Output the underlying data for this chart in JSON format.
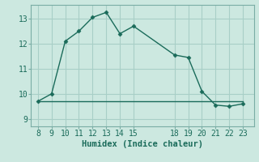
{
  "x_main": [
    8,
    9,
    10,
    11,
    12,
    13,
    14,
    15,
    18,
    19,
    20,
    21,
    22,
    23
  ],
  "y_main": [
    9.7,
    10.0,
    12.1,
    12.5,
    13.05,
    13.25,
    12.4,
    12.7,
    11.55,
    11.45,
    10.1,
    9.55,
    9.5,
    9.6
  ],
  "x_flat": [
    8,
    9,
    10,
    11,
    12,
    13,
    14,
    15,
    18,
    19,
    20,
    21,
    22,
    23
  ],
  "y_flat": [
    9.7,
    9.7,
    9.7,
    9.7,
    9.7,
    9.7,
    9.7,
    9.7,
    9.7,
    9.7,
    9.7,
    9.7,
    9.7,
    9.7
  ],
  "line_color": "#1a6b5a",
  "bg_color": "#cce8e0",
  "grid_color": "#a8cfc7",
  "xlabel": "Humidex (Indice chaleur)",
  "xticks": [
    8,
    9,
    10,
    11,
    12,
    13,
    14,
    15,
    18,
    19,
    20,
    21,
    22,
    23
  ],
  "yticks": [
    9,
    10,
    11,
    12,
    13
  ],
  "xlim": [
    7.5,
    23.8
  ],
  "ylim": [
    8.7,
    13.55
  ],
  "label_fontsize": 7.5,
  "tick_fontsize": 7.0
}
